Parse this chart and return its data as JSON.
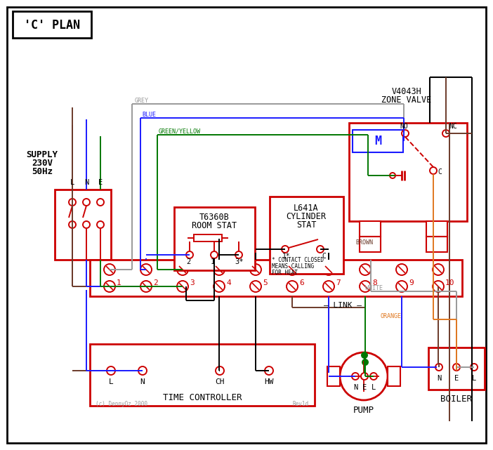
{
  "title": "'C' PLAN",
  "bg_color": "#ffffff",
  "red": "#cc0000",
  "blue": "#1a1aff",
  "green": "#007700",
  "grey": "#999999",
  "brown": "#6B3A2A",
  "orange": "#E07820",
  "black": "#000000",
  "white_wire": "#999999",
  "copyright": "(c) DennyOz 2000",
  "rev": "Rev1d",
  "terminal_labels": [
    "1",
    "2",
    "3",
    "4",
    "5",
    "6",
    "7",
    "8",
    "9",
    "10"
  ],
  "tc_terminals": [
    "L",
    "N",
    "CH",
    "HW"
  ],
  "pump_terminals": [
    "N",
    "E",
    "L"
  ],
  "boiler_terminals": [
    "N",
    "E",
    "L"
  ]
}
